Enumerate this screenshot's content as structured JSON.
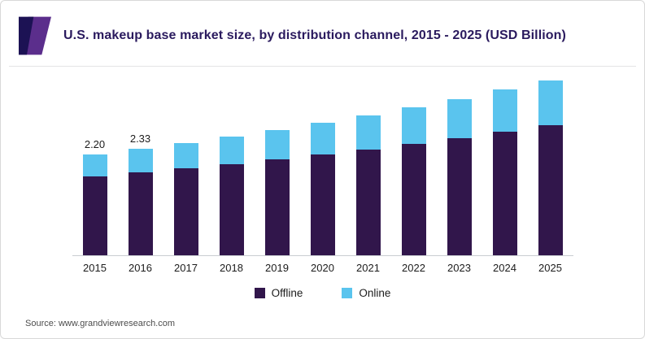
{
  "header": {
    "title": "U.S. makeup base market size, by distribution channel, 2015 - 2025 (USD Billion)"
  },
  "source": "Source: www.grandviewresearch.com",
  "colors": {
    "offline": "#31164b",
    "online": "#5ac4ee",
    "title": "#2a1a5e",
    "logo_dark": "#1c1254",
    "logo_purple": "#5b2e8c"
  },
  "legend": [
    {
      "label": "Offline",
      "color": "#31164b"
    },
    {
      "label": "Online",
      "color": "#5ac4ee"
    }
  ],
  "chart_data": {
    "type": "bar",
    "stacked": true,
    "title": "U.S. makeup base market size, by distribution channel, 2015 - 2025 (USD Billion)",
    "xlabel": "",
    "ylabel": "",
    "categories": [
      "2015",
      "2016",
      "2017",
      "2018",
      "2019",
      "2020",
      "2021",
      "2022",
      "2023",
      "2024",
      "2025"
    ],
    "series": [
      {
        "name": "Offline",
        "color": "#31164b",
        "values": [
          1.72,
          1.81,
          1.9,
          2.0,
          2.1,
          2.21,
          2.32,
          2.44,
          2.56,
          2.7,
          2.84
        ]
      },
      {
        "name": "Online",
        "color": "#5ac4ee",
        "values": [
          0.48,
          0.52,
          0.56,
          0.6,
          0.64,
          0.69,
          0.74,
          0.8,
          0.86,
          0.92,
          0.99
        ]
      }
    ],
    "totals": [
      2.2,
      2.33,
      2.46,
      2.6,
      2.74,
      2.9,
      3.06,
      3.24,
      3.42,
      3.62,
      3.83
    ],
    "value_labels": [
      "2.20",
      "2.33",
      "",
      "",
      "",
      "",
      "",
      "",
      "",
      "",
      ""
    ],
    "ylim": [
      0,
      4.0
    ],
    "grid": false,
    "legend_position": "bottom"
  }
}
